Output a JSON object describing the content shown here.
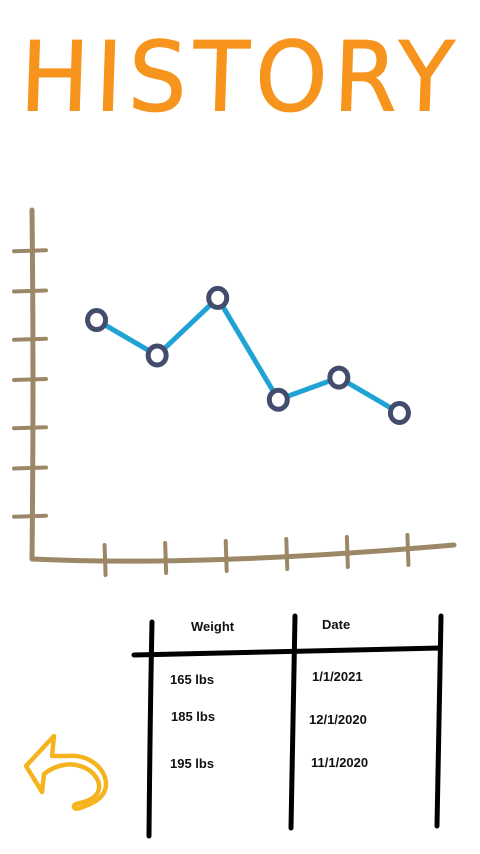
{
  "header": {
    "title": "HISTORY"
  },
  "chart_data": {
    "type": "line",
    "title": "",
    "xlabel": "",
    "ylabel": "",
    "x": [
      1,
      2,
      3,
      4,
      5,
      6
    ],
    "series": [
      {
        "values": [
          5.4,
          4.6,
          5.9,
          3.6,
          4.1,
          3.3
        ]
      }
    ],
    "xlim": [
      0,
      7
    ],
    "ylim": [
      0,
      8
    ],
    "grid": false,
    "colors": {
      "axis": "#9c8867",
      "line": "#1fa2d4",
      "marker_stroke": "#434c6d",
      "marker_fill": "#ffffff"
    }
  },
  "history_table": {
    "headers": [
      "Weight",
      "Date"
    ],
    "rows": [
      {
        "weight": "165 lbs",
        "date": "1/1/2021"
      },
      {
        "weight": "185 lbs",
        "date": "12/1/2020"
      },
      {
        "weight": "195 lbs",
        "date": "11/1/2020"
      }
    ]
  },
  "back_button": {
    "icon": "back-arrow-icon",
    "color": "#f5b41e"
  }
}
